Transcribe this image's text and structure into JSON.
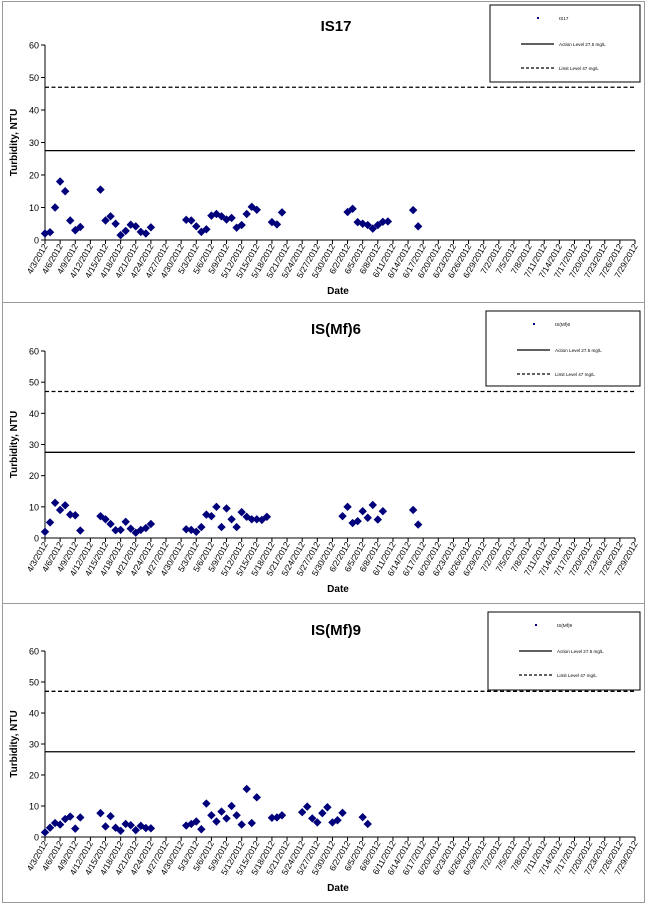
{
  "chart_data": [
    {
      "type": "scatter",
      "title": "IS17",
      "xlabel": "Date",
      "ylabel": "Turbidity, NTU",
      "ylim": [
        0,
        60
      ],
      "yticks": [
        "0",
        "10",
        "20",
        "30",
        "40",
        "50",
        "60"
      ],
      "grid": false,
      "legend_position": "top-right",
      "x_tick_labels": [
        "4/3/2012",
        "4/6/2012",
        "4/9/2012",
        "4/12/2012",
        "4/15/2012",
        "4/18/2012",
        "4/21/2012",
        "4/24/2012",
        "4/27/2012",
        "4/30/2012",
        "5/3/2012",
        "5/6/2012",
        "5/9/2012",
        "5/12/2012",
        "5/15/2012",
        "5/18/2012",
        "5/21/2012",
        "5/24/2012",
        "5/27/2012",
        "5/30/2012",
        "6/2/2012",
        "6/5/2012",
        "6/8/2012",
        "6/11/2012",
        "6/14/2012",
        "6/17/2012",
        "6/20/2012",
        "6/23/2012",
        "6/26/2012",
        "6/29/2012",
        "7/2/2012",
        "7/5/2012",
        "7/8/2012",
        "7/11/2012",
        "7/14/2012",
        "7/17/2012",
        "7/20/2012",
        "7/23/2012",
        "7/26/2012",
        "7/29/2012"
      ],
      "legend": [
        "IS17",
        "Action Level 27.5 mg/L",
        "Limit Level 47 mg/L"
      ],
      "series": [
        {
          "name": "IS17",
          "marker": "diamond",
          "color": "#00007a",
          "points": [
            [
              "4/3/2012",
              2
            ],
            [
              "4/4/2012",
              2.4
            ],
            [
              "4/5/2012",
              10
            ],
            [
              "4/6/2012",
              18
            ],
            [
              "4/7/2012",
              15
            ],
            [
              "4/8/2012",
              6
            ],
            [
              "4/9/2012",
              3
            ],
            [
              "4/10/2012",
              4
            ],
            [
              "4/14/2012",
              15.5
            ],
            [
              "4/15/2012",
              6
            ],
            [
              "4/16/2012",
              7.3
            ],
            [
              "4/17/2012",
              5
            ],
            [
              "4/18/2012",
              1.5
            ],
            [
              "4/19/2012",
              2.8
            ],
            [
              "4/20/2012",
              4.7
            ],
            [
              "4/21/2012",
              4.2
            ],
            [
              "4/22/2012",
              2.5
            ],
            [
              "4/23/2012",
              2
            ],
            [
              "4/24/2012",
              3.9
            ],
            [
              "5/1/2012",
              6.2
            ],
            [
              "5/2/2012",
              6
            ],
            [
              "5/3/2012",
              4.2
            ],
            [
              "5/4/2012",
              2.5
            ],
            [
              "5/5/2012",
              3.3
            ],
            [
              "5/6/2012",
              7.5
            ],
            [
              "5/7/2012",
              8
            ],
            [
              "5/8/2012",
              7.3
            ],
            [
              "5/9/2012",
              6.3
            ],
            [
              "5/10/2012",
              6.8
            ],
            [
              "5/11/2012",
              3.8
            ],
            [
              "5/12/2012",
              4.6
            ],
            [
              "5/13/2012",
              8
            ],
            [
              "5/14/2012",
              10.2
            ],
            [
              "5/15/2012",
              9.3
            ],
            [
              "5/18/2012",
              5.5
            ],
            [
              "5/19/2012",
              4.8
            ],
            [
              "5/20/2012",
              8.5
            ],
            [
              "6/2/2012",
              8.6
            ],
            [
              "6/3/2012",
              9.6
            ],
            [
              "6/4/2012",
              5.5
            ],
            [
              "6/5/2012",
              5
            ],
            [
              "6/6/2012",
              4.6
            ],
            [
              "6/7/2012",
              3.5
            ],
            [
              "6/8/2012",
              4.6
            ],
            [
              "6/9/2012",
              5.6
            ],
            [
              "6/10/2012",
              5.7
            ],
            [
              "6/15/2012",
              9.2
            ],
            [
              "6/16/2012",
              4.2
            ]
          ]
        },
        {
          "name": "Action Level 27.5 mg/L",
          "style": "solid",
          "y": 27.5
        },
        {
          "name": "Limit Level 47 mg/L",
          "style": "dashed",
          "y": 47
        }
      ]
    },
    {
      "type": "scatter",
      "title": "IS(Mf)6",
      "xlabel": "Date",
      "ylabel": "Turbidity, NTU",
      "ylim": [
        0,
        60
      ],
      "yticks": [
        "0",
        "10",
        "20",
        "30",
        "40",
        "50",
        "60"
      ],
      "grid": false,
      "legend_position": "top-right",
      "x_tick_labels": [
        "4/3/2012",
        "4/6/2012",
        "4/9/2012",
        "4/12/2012",
        "4/15/2012",
        "4/18/2012",
        "4/21/2012",
        "4/24/2012",
        "4/27/2012",
        "4/30/2012",
        "5/3/2012",
        "5/6/2012",
        "5/9/2012",
        "5/12/2012",
        "5/15/2012",
        "5/18/2012",
        "5/21/2012",
        "5/24/2012",
        "5/27/2012",
        "5/30/2012",
        "6/2/2012",
        "6/5/2012",
        "6/8/2012",
        "6/11/2012",
        "6/14/2012",
        "6/17/2012",
        "6/20/2012",
        "6/23/2012",
        "6/26/2012",
        "6/29/2012",
        "7/2/2012",
        "7/5/2012",
        "7/8/2012",
        "7/11/2012",
        "7/14/2012",
        "7/17/2012",
        "7/20/2012",
        "7/23/2012",
        "7/26/2012",
        "7/29/2012"
      ],
      "legend": [
        "IS(Mf)6",
        "Action Level 27.5 mg/L",
        "Limit Level 47 mg/L"
      ],
      "series": [
        {
          "name": "IS(Mf)6",
          "marker": "diamond",
          "color": "#00007a",
          "points": [
            [
              "4/3/2012",
              2
            ],
            [
              "4/4/2012",
              5
            ],
            [
              "4/5/2012",
              11.3
            ],
            [
              "4/6/2012",
              9
            ],
            [
              "4/7/2012",
              10.5
            ],
            [
              "4/8/2012",
              7.5
            ],
            [
              "4/9/2012",
              7.3
            ],
            [
              "4/10/2012",
              2.4
            ],
            [
              "4/14/2012",
              7
            ],
            [
              "4/15/2012",
              6
            ],
            [
              "4/16/2012",
              4.5
            ],
            [
              "4/17/2012",
              2.5
            ],
            [
              "4/18/2012",
              2.6
            ],
            [
              "4/19/2012",
              5.2
            ],
            [
              "4/20/2012",
              3
            ],
            [
              "4/21/2012",
              1.7
            ],
            [
              "4/22/2012",
              2.6
            ],
            [
              "4/23/2012",
              3.2
            ],
            [
              "4/24/2012",
              4.5
            ],
            [
              "5/1/2012",
              2.8
            ],
            [
              "5/2/2012",
              2.6
            ],
            [
              "5/3/2012",
              2
            ],
            [
              "5/4/2012",
              3.5
            ],
            [
              "5/5/2012",
              7.5
            ],
            [
              "5/6/2012",
              7
            ],
            [
              "5/7/2012",
              10
            ],
            [
              "5/8/2012",
              3.5
            ],
            [
              "5/9/2012",
              9.5
            ],
            [
              "5/10/2012",
              6
            ],
            [
              "5/11/2012",
              3.5
            ],
            [
              "5/12/2012",
              8.3
            ],
            [
              "5/13/2012",
              6.8
            ],
            [
              "5/14/2012",
              6
            ],
            [
              "5/15/2012",
              6
            ],
            [
              "5/16/2012",
              5.8
            ],
            [
              "5/17/2012",
              6.8
            ],
            [
              "6/1/2012",
              7
            ],
            [
              "6/2/2012",
              10
            ],
            [
              "6/3/2012",
              4.8
            ],
            [
              "6/4/2012",
              5.4
            ],
            [
              "6/5/2012",
              8.6
            ],
            [
              "6/6/2012",
              6.5
            ],
            [
              "6/7/2012",
              10.6
            ],
            [
              "6/8/2012",
              5.9
            ],
            [
              "6/9/2012",
              8.6
            ],
            [
              "6/15/2012",
              9
            ],
            [
              "6/16/2012",
              4.3
            ]
          ]
        },
        {
          "name": "Action Level 27.5 mg/L",
          "style": "solid",
          "y": 27.5
        },
        {
          "name": "Limit Level 47 mg/L",
          "style": "dashed",
          "y": 47
        }
      ]
    },
    {
      "type": "scatter",
      "title": "IS(Mf)9",
      "xlabel": "Date",
      "ylabel": "Turbidity, NTU",
      "ylim": [
        0,
        60
      ],
      "yticks": [
        "0",
        "10",
        "20",
        "30",
        "40",
        "50",
        "60"
      ],
      "grid": false,
      "legend_position": "top-right",
      "x_tick_labels": [
        "4/3/2012",
        "4/6/2012",
        "4/9/2012",
        "4/12/2012",
        "4/15/2012",
        "4/18/2012",
        "4/21/2012",
        "4/24/2012",
        "4/27/2012",
        "4/30/2012",
        "5/3/2012",
        "5/6/2012",
        "5/9/2012",
        "5/12/2012",
        "5/15/2012",
        "5/18/2012",
        "5/21/2012",
        "5/24/2012",
        "5/27/2012",
        "5/30/2012",
        "6/2/2012",
        "6/5/2012",
        "6/8/2012",
        "6/11/2012",
        "6/14/2012",
        "6/17/2012",
        "6/20/2012",
        "6/23/2012",
        "6/26/2012",
        "6/29/2012",
        "7/2/2012",
        "7/5/2012",
        "7/8/2012",
        "7/11/2012",
        "7/14/2012",
        "7/17/2012",
        "7/20/2012",
        "7/23/2012",
        "7/26/2012",
        "7/29/2012"
      ],
      "legend": [
        "IS(Mf)9",
        "Action Level 27.5 mg/L",
        "Limit Level 47 mg/L"
      ],
      "series": [
        {
          "name": "IS(Mf)9",
          "marker": "diamond",
          "color": "#00007a",
          "points": [
            [
              "4/3/2012",
              1.5
            ],
            [
              "4/4/2012",
              3
            ],
            [
              "4/5/2012",
              4.5
            ],
            [
              "4/6/2012",
              4
            ],
            [
              "4/7/2012",
              5.8
            ],
            [
              "4/8/2012",
              6.6
            ],
            [
              "4/9/2012",
              2.7
            ],
            [
              "4/10/2012",
              6.3
            ],
            [
              "4/14/2012",
              7.7
            ],
            [
              "4/15/2012",
              3.4
            ],
            [
              "4/16/2012",
              6.7
            ],
            [
              "4/17/2012",
              3
            ],
            [
              "4/18/2012",
              2
            ],
            [
              "4/19/2012",
              4.2
            ],
            [
              "4/20/2012",
              3.8
            ],
            [
              "4/21/2012",
              2.2
            ],
            [
              "4/22/2012",
              3.6
            ],
            [
              "4/23/2012",
              2.9
            ],
            [
              "4/24/2012",
              2.8
            ],
            [
              "5/1/2012",
              3.7
            ],
            [
              "5/2/2012",
              4.2
            ],
            [
              "5/3/2012",
              5
            ],
            [
              "5/4/2012",
              2.5
            ],
            [
              "5/5/2012",
              10.8
            ],
            [
              "5/6/2012",
              7
            ],
            [
              "5/7/2012",
              5
            ],
            [
              "5/8/2012",
              8.2
            ],
            [
              "5/9/2012",
              6
            ],
            [
              "5/10/2012",
              10
            ],
            [
              "5/11/2012",
              7
            ],
            [
              "5/12/2012",
              4
            ],
            [
              "5/13/2012",
              15.5
            ],
            [
              "5/14/2012",
              4.5
            ],
            [
              "5/15/2012",
              12.8
            ],
            [
              "5/18/2012",
              6.2
            ],
            [
              "5/19/2012",
              6.3
            ],
            [
              "5/20/2012",
              7
            ],
            [
              "5/24/2012",
              8
            ],
            [
              "5/25/2012",
              9.8
            ],
            [
              "5/26/2012",
              6
            ],
            [
              "5/27/2012",
              4.7
            ],
            [
              "5/28/2012",
              7.7
            ],
            [
              "5/29/2012",
              9.6
            ],
            [
              "5/30/2012",
              4.7
            ],
            [
              "5/31/2012",
              5.4
            ],
            [
              "6/1/2012",
              7.8
            ],
            [
              "6/5/2012",
              6.4
            ],
            [
              "6/6/2012",
              4.2
            ]
          ]
        },
        {
          "name": "Action Level 27.5 mg/L",
          "style": "solid",
          "y": 27.5
        },
        {
          "name": "Limit Level 47 mg/L",
          "style": "dashed",
          "y": 47
        }
      ]
    }
  ]
}
